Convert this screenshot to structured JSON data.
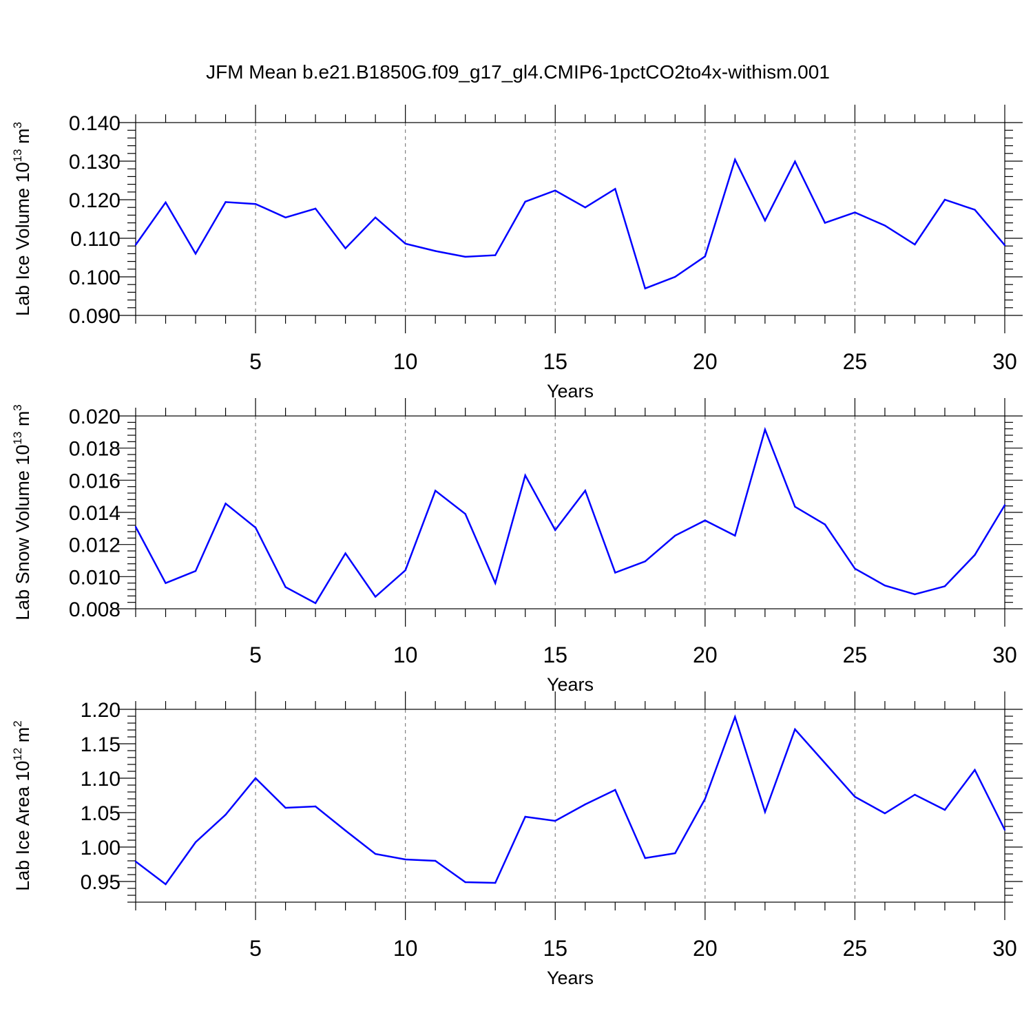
{
  "title": "JFM Mean b.e21.B1850G.f09_g17_gl4.CMIP6-1pctCO2to4x-withism.001",
  "chart_data": [
    {
      "type": "line",
      "ylabel_prefix": "Lab Ice Volume 10",
      "ylabel_exp": "13",
      "ylabel_unit": " m",
      "ylabel_unit_exp": "3",
      "xlabel": "Years",
      "xlim": [
        1,
        30
      ],
      "ylim": [
        0.09,
        0.14
      ],
      "x_ticks": [
        5,
        10,
        15,
        20,
        25,
        30
      ],
      "x_tick_labels": [
        "5",
        "10",
        "15",
        "20",
        "25",
        "30"
      ],
      "y_ticks": [
        0.09,
        0.1,
        0.11,
        0.12,
        0.13,
        0.14
      ],
      "y_tick_labels": [
        "0.090",
        "0.100",
        "0.110",
        "0.120",
        "0.130",
        "0.140"
      ],
      "y_minor_step": 0.002,
      "line_color": "#0000ff",
      "x": [
        1,
        2,
        3,
        4,
        5,
        6,
        7,
        8,
        9,
        10,
        11,
        12,
        13,
        14,
        15,
        16,
        17,
        18,
        19,
        20,
        21,
        22,
        23,
        24,
        25,
        26,
        27,
        28,
        29,
        30
      ],
      "values": [
        0.1083,
        0.1193,
        0.106,
        0.1194,
        0.1189,
        0.1154,
        0.1177,
        0.1074,
        0.1154,
        0.1086,
        0.1067,
        0.1052,
        0.1056,
        0.1195,
        0.1224,
        0.118,
        0.1228,
        0.097,
        0.1,
        0.1053,
        0.1304,
        0.1146,
        0.1299,
        0.114,
        0.1167,
        0.1133,
        0.1084,
        0.12,
        0.1174,
        0.1082
      ]
    },
    {
      "type": "line",
      "ylabel_prefix": "Lab Snow Volume 10",
      "ylabel_exp": "13",
      "ylabel_unit": " m",
      "ylabel_unit_exp": "3",
      "xlabel": "Years",
      "xlim": [
        1,
        30
      ],
      "ylim": [
        0.008,
        0.02
      ],
      "x_ticks": [
        5,
        10,
        15,
        20,
        25,
        30
      ],
      "x_tick_labels": [
        "5",
        "10",
        "15",
        "20",
        "25",
        "30"
      ],
      "y_ticks": [
        0.008,
        0.01,
        0.012,
        0.014,
        0.016,
        0.018,
        0.02
      ],
      "y_tick_labels": [
        "0.008",
        "0.010",
        "0.012",
        "0.014",
        "0.016",
        "0.018",
        "0.020"
      ],
      "y_minor_step": 0.0004,
      "line_color": "#0000ff",
      "x": [
        1,
        2,
        3,
        4,
        5,
        6,
        7,
        8,
        9,
        10,
        11,
        12,
        13,
        14,
        15,
        16,
        17,
        18,
        19,
        20,
        21,
        22,
        23,
        24,
        25,
        26,
        27,
        28,
        29,
        30
      ],
      "values": [
        0.0131,
        0.0096,
        0.01035,
        0.01455,
        0.01305,
        0.00935,
        0.00835,
        0.01145,
        0.00875,
        0.0104,
        0.01535,
        0.0139,
        0.0096,
        0.0163,
        0.0129,
        0.01535,
        0.01025,
        0.01095,
        0.01255,
        0.0135,
        0.01255,
        0.01915,
        0.01435,
        0.01325,
        0.0105,
        0.00945,
        0.0089,
        0.0094,
        0.01135,
        0.01445
      ]
    },
    {
      "type": "line",
      "ylabel_prefix": "Lab Ice Area 10",
      "ylabel_exp": "12",
      "ylabel_unit": " m",
      "ylabel_unit_exp": "2",
      "xlabel": "Years",
      "xlim": [
        1,
        30
      ],
      "ylim": [
        0.92,
        1.2
      ],
      "x_ticks": [
        5,
        10,
        15,
        20,
        25,
        30
      ],
      "x_tick_labels": [
        "5",
        "10",
        "15",
        "20",
        "25",
        "30"
      ],
      "y_ticks": [
        0.95,
        1.0,
        1.05,
        1.1,
        1.15,
        1.2
      ],
      "y_tick_labels": [
        "0.95",
        "1.00",
        "1.05",
        "1.10",
        "1.15",
        "1.20"
      ],
      "y_minor_step": 0.01,
      "line_color": "#0000ff",
      "x": [
        1,
        2,
        3,
        4,
        5,
        6,
        7,
        8,
        9,
        10,
        11,
        12,
        13,
        14,
        15,
        16,
        17,
        18,
        19,
        20,
        21,
        22,
        23,
        24,
        25,
        26,
        27,
        28,
        29,
        30
      ],
      "values": [
        0.979,
        0.946,
        1.007,
        1.047,
        1.1,
        1.057,
        1.059,
        1.024,
        0.99,
        0.982,
        0.98,
        0.949,
        0.948,
        1.044,
        1.038,
        1.062,
        1.083,
        0.984,
        0.991,
        1.07,
        1.189,
        1.051,
        1.171,
        1.122,
        1.073,
        1.049,
        1.076,
        1.054,
        1.112,
        1.025
      ]
    }
  ]
}
